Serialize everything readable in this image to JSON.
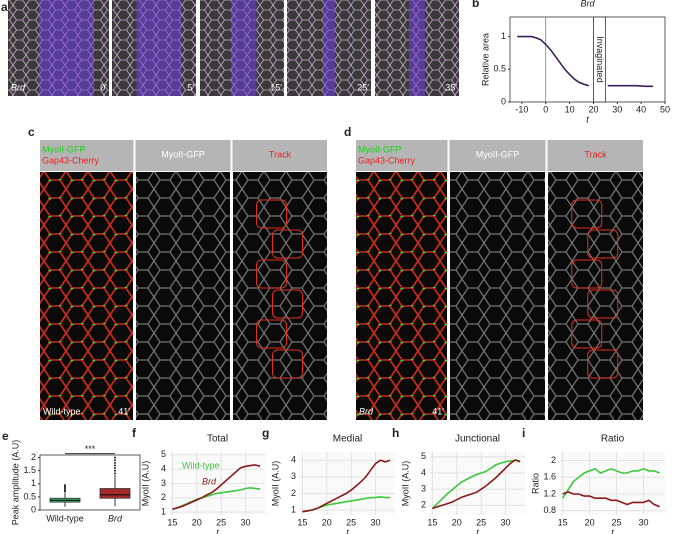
{
  "images": {
    "a": {
      "label": "a",
      "genotype": "Brd",
      "times": [
        "0′",
        "5′",
        "15′",
        "25′",
        "35′"
      ]
    },
    "c": {
      "label": "c",
      "channels": [
        "MyoII-GFP",
        "Gap43-Cherry"
      ],
      "single": "MyoII-GFP",
      "track": "Track",
      "genotype": "Wild-type",
      "time": "41′"
    },
    "d": {
      "label": "d",
      "channels": [
        "MyoII-GFP",
        "Gap43-Cherry"
      ],
      "single": "MyoII-GFP",
      "track": "Track",
      "genotype": "Brd",
      "time": "41′"
    }
  },
  "chart_data": [
    {
      "type": "line",
      "label": "b",
      "title": "Brd",
      "xlabel": "t",
      "ylabel": "Relative area",
      "annotation": "Invaginated",
      "annotation_range": [
        20,
        25
      ],
      "xlim": [
        -15,
        50
      ],
      "xticks": [
        -10,
        0,
        10,
        20,
        30,
        40,
        50
      ],
      "ylim": [
        0,
        1.3
      ],
      "yticks": [
        0,
        0.5,
        1
      ],
      "grid": false,
      "x": [
        -12,
        -10,
        -8,
        -6,
        -4,
        -2,
        0,
        2,
        4,
        6,
        8,
        10,
        12,
        14,
        16,
        18,
        20,
        26,
        30,
        34,
        38,
        42,
        45
      ],
      "series": [
        {
          "name": "Brd",
          "color": "#3b1f5e",
          "values": [
            1,
            1,
            1,
            1,
            0.98,
            0.95,
            0.88,
            0.8,
            0.7,
            0.6,
            0.5,
            0.42,
            0.35,
            0.3,
            0.27,
            0.25,
            null,
            0.25,
            0.25,
            0.25,
            0.25,
            0.24,
            0.24
          ]
        }
      ]
    },
    {
      "type": "box",
      "label": "e",
      "ylabel": "Peak amplitude (A.U)",
      "annotation": "***",
      "categories": [
        "Wild-type",
        "Brd"
      ],
      "colors": [
        "#3cb371",
        "#a52a2a"
      ],
      "ylim": [
        0,
        2.1
      ],
      "yticks": [
        0,
        0.5,
        1,
        1.5,
        2
      ],
      "boxes": [
        {
          "min": 0.12,
          "q1": 0.3,
          "median": 0.37,
          "q3": 0.45,
          "max": 0.65,
          "outliers": [
            0.7,
            0.75,
            0.8,
            0.85,
            0.9,
            0.95
          ]
        },
        {
          "min": 0.15,
          "q1": 0.45,
          "median": 0.58,
          "q3": 0.82,
          "max": 1.35,
          "outliers": [
            1.4,
            1.5,
            1.6,
            1.7,
            1.8,
            1.9,
            2.0
          ]
        }
      ]
    },
    {
      "type": "line",
      "label": "f",
      "title": "Total",
      "xlabel": "t",
      "ylabel": "MyoII (A.U)",
      "legend": true,
      "grid": true,
      "xlim": [
        14.5,
        34
      ],
      "xticks": [
        15,
        20,
        25,
        30
      ],
      "ylim": [
        0.8,
        5.2
      ],
      "yticks": [
        1,
        2,
        3,
        4,
        5
      ],
      "x": [
        15,
        16,
        17,
        18,
        19,
        20,
        21,
        22,
        23,
        24,
        25,
        26,
        27,
        28,
        29,
        30,
        31,
        32,
        33
      ],
      "series": [
        {
          "name": "Wild-type",
          "color": "#3cc83c",
          "values": [
            1.2,
            1.3,
            1.45,
            1.6,
            1.75,
            1.9,
            2.0,
            2.1,
            2.2,
            2.3,
            2.35,
            2.4,
            2.45,
            2.5,
            2.55,
            2.65,
            2.7,
            2.65,
            2.6
          ]
        },
        {
          "name": "Brd",
          "color": "#8b1a1a",
          "values": [
            1.2,
            1.3,
            1.4,
            1.55,
            1.7,
            1.85,
            2.0,
            2.2,
            2.35,
            2.6,
            2.9,
            3.2,
            3.5,
            3.8,
            4.1,
            4.2,
            4.25,
            4.3,
            4.2
          ]
        }
      ]
    },
    {
      "type": "line",
      "label": "g",
      "title": "Medial",
      "xlabel": "t",
      "ylabel": "MyoII (A.U)",
      "grid": true,
      "xlim": [
        14.5,
        34
      ],
      "xticks": [
        15,
        20,
        25,
        30
      ],
      "ylim": [
        0.7,
        4.5
      ],
      "yticks": [
        1,
        2,
        3,
        4
      ],
      "x": [
        15,
        16,
        17,
        18,
        19,
        20,
        21,
        22,
        23,
        24,
        25,
        26,
        27,
        28,
        29,
        30,
        31,
        32,
        33
      ],
      "series": [
        {
          "name": "Wild-type",
          "color": "#3cc83c",
          "values": [
            0.9,
            0.95,
            1.0,
            1.1,
            1.2,
            1.3,
            1.35,
            1.4,
            1.45,
            1.5,
            1.55,
            1.6,
            1.65,
            1.7,
            1.75,
            1.75,
            1.8,
            1.75,
            1.75
          ]
        },
        {
          "name": "Brd",
          "color": "#8b1a1a",
          "values": [
            0.9,
            0.95,
            1.0,
            1.1,
            1.25,
            1.4,
            1.55,
            1.7,
            1.85,
            2.0,
            2.2,
            2.45,
            2.7,
            3.0,
            3.4,
            3.8,
            4.0,
            3.9,
            4.0
          ]
        }
      ]
    },
    {
      "type": "line",
      "label": "h",
      "title": "Junctional",
      "xlabel": "t",
      "ylabel": "MyoII (A.U)",
      "grid": true,
      "xlim": [
        14.5,
        34
      ],
      "xticks": [
        15,
        20,
        25,
        30
      ],
      "ylim": [
        1.4,
        5.3
      ],
      "yticks": [
        2,
        3,
        4,
        5
      ],
      "x": [
        15,
        16,
        17,
        18,
        19,
        20,
        21,
        22,
        23,
        24,
        25,
        26,
        27,
        28,
        29,
        30,
        31,
        32,
        33
      ],
      "series": [
        {
          "name": "Wild-type",
          "color": "#3cc83c",
          "values": [
            1.8,
            2.1,
            2.4,
            2.7,
            2.95,
            3.2,
            3.45,
            3.6,
            3.75,
            3.9,
            4.0,
            4.1,
            4.3,
            4.5,
            4.6,
            4.7,
            4.75,
            4.8,
            4.75
          ]
        },
        {
          "name": "Brd",
          "color": "#8b1a1a",
          "values": [
            1.8,
            1.9,
            2.0,
            2.1,
            2.2,
            2.35,
            2.5,
            2.6,
            2.7,
            2.8,
            3.0,
            3.2,
            3.45,
            3.7,
            4.0,
            4.3,
            4.6,
            4.8,
            4.7
          ]
        }
      ]
    },
    {
      "type": "line",
      "label": "i",
      "title": "Ratio",
      "xlabel": "t",
      "ylabel": "Ratio",
      "grid": true,
      "xlim": [
        14.5,
        34
      ],
      "xticks": [
        15,
        20,
        25,
        30
      ],
      "ylim": [
        0.7,
        2.2
      ],
      "yticks": [
        0.8,
        1.2,
        1.6,
        2
      ],
      "x": [
        15,
        16,
        17,
        18,
        19,
        20,
        21,
        22,
        23,
        24,
        25,
        26,
        27,
        28,
        29,
        30,
        31,
        32,
        33
      ],
      "series": [
        {
          "name": "Wild-type",
          "color": "#3cc83c",
          "values": [
            1.1,
            1.3,
            1.5,
            1.6,
            1.7,
            1.75,
            1.8,
            1.7,
            1.75,
            1.8,
            1.75,
            1.7,
            1.7,
            1.75,
            1.75,
            1.8,
            1.75,
            1.75,
            1.7
          ]
        },
        {
          "name": "Brd",
          "color": "#8b1a1a",
          "values": [
            1.2,
            1.25,
            1.2,
            1.2,
            1.15,
            1.15,
            1.1,
            1.1,
            1.1,
            1.05,
            1.05,
            1.0,
            0.95,
            1.0,
            1.0,
            1.0,
            1.05,
            0.95,
            0.9
          ]
        }
      ]
    }
  ]
}
